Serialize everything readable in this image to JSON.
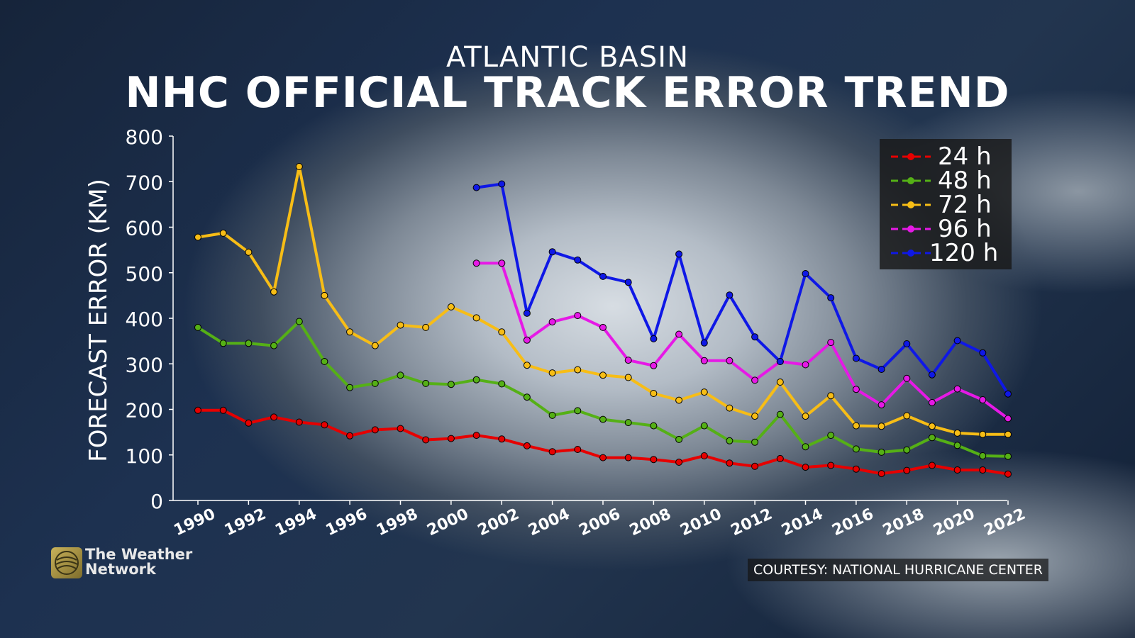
{
  "header": {
    "subtitle": "ATLANTIC BASIN",
    "title": "NHC OFFICIAL TRACK ERROR TREND"
  },
  "logo": {
    "line1": "The Weather",
    "line2": "Network"
  },
  "credit": "COURTESY: NATIONAL HURRICANE CENTER",
  "chart_data": {
    "type": "line",
    "title": "NHC OFFICIAL TRACK ERROR TREND",
    "subtitle": "ATLANTIC BASIN",
    "xlabel": "",
    "ylabel": "FORECAST ERROR (KM)",
    "ylim": [
      0,
      800
    ],
    "yticks": [
      0,
      100,
      200,
      300,
      400,
      500,
      600,
      700,
      800
    ],
    "xlim": [
      1990,
      2022
    ],
    "xticks": [
      1990,
      1992,
      1994,
      1996,
      1998,
      2000,
      2002,
      2004,
      2006,
      2008,
      2010,
      2012,
      2014,
      2016,
      2018,
      2020,
      2022
    ],
    "grid": false,
    "legend_position": "top-right",
    "series": [
      {
        "name": "24 h",
        "color": "#e60000",
        "start_year": 1990,
        "values": [
          198,
          198,
          170,
          183,
          172,
          166,
          142,
          155,
          158,
          133,
          136,
          143,
          135,
          120,
          107,
          112,
          94,
          94,
          90,
          84,
          98,
          82,
          75,
          92,
          73,
          77,
          69,
          59,
          66,
          77,
          67,
          67,
          58
        ]
      },
      {
        "name": "48 h",
        "color": "#55b016",
        "start_year": 1990,
        "values": [
          380,
          345,
          345,
          340,
          393,
          305,
          248,
          257,
          275,
          257,
          255,
          265,
          256,
          227,
          187,
          197,
          178,
          171,
          164,
          134,
          164,
          131,
          128,
          189,
          118,
          143,
          113,
          106,
          111,
          138,
          121,
          98,
          97
        ]
      },
      {
        "name": "72 h",
        "color": "#f7bd16",
        "start_year": 1990,
        "values": [
          578,
          587,
          545,
          458,
          733,
          450,
          370,
          340,
          385,
          380,
          425,
          401,
          370,
          297,
          280,
          287,
          275,
          270,
          235,
          220,
          238,
          203,
          185,
          260,
          185,
          230,
          164,
          163,
          186,
          163,
          148,
          145,
          145
        ]
      },
      {
        "name": "96 h",
        "color": "#e619e6",
        "start_year": 2001,
        "values": [
          521,
          521,
          352,
          392,
          406,
          380,
          308,
          296,
          365,
          307,
          307,
          264,
          305,
          298,
          347,
          244,
          210,
          268,
          215,
          245,
          221,
          180
        ]
      },
      {
        "name": "120 h",
        "color": "#0f18e6",
        "start_year": 2001,
        "values": [
          687,
          695,
          411,
          546,
          528,
          492,
          479,
          355,
          541,
          346,
          451,
          359,
          305,
          498,
          445,
          312,
          288,
          344,
          276,
          351,
          324,
          234
        ]
      }
    ]
  }
}
